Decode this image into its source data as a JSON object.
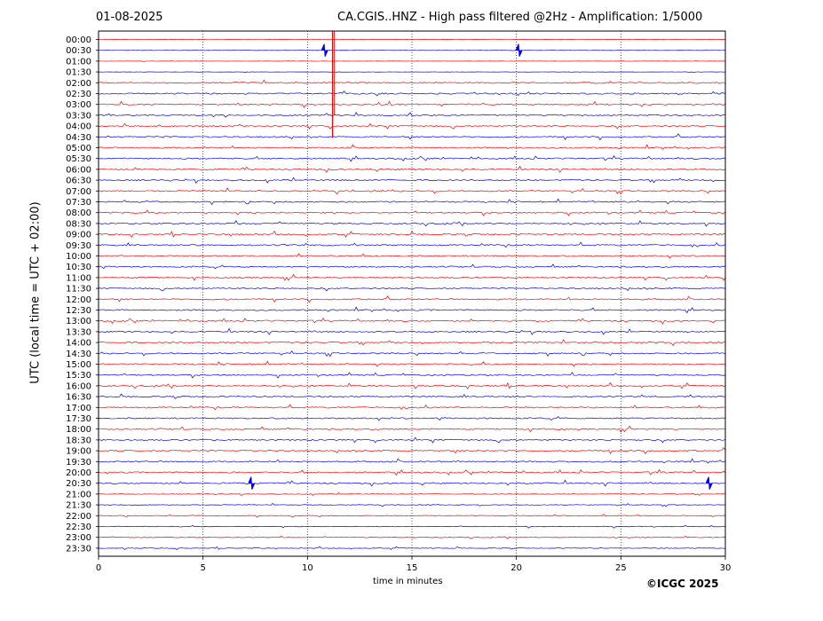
{
  "header": {
    "date": "01-08-2025",
    "title": "CA.CGIS..HNZ - High pass filtered @2Hz - Amplification: 1/5000"
  },
  "footer": {
    "copyright": "©ICGC 2025"
  },
  "colors": {
    "red_trace": "#ff0000",
    "blue_trace": "#0000ff",
    "grid": "#000080",
    "frame": "#000000"
  },
  "chart_data": {
    "type": "line",
    "subtype": "helicorder",
    "xlabel": "time in minutes",
    "ylabel": "UTC (local time = UTC + 02:00)",
    "xlim": [
      0,
      30
    ],
    "x_ticks": [
      "0",
      "5",
      "10",
      "15",
      "20",
      "25",
      "30"
    ],
    "grid": "vertical dotted lines at 5, 10, 15, 20, 25 minutes",
    "trace_colors_alternate": [
      "red",
      "blue"
    ],
    "rows": [
      "00:00",
      "00:30",
      "01:00",
      "01:30",
      "02:00",
      "02:30",
      "03:00",
      "03:30",
      "04:00",
      "04:30",
      "05:00",
      "05:30",
      "06:00",
      "06:30",
      "07:00",
      "07:30",
      "08:00",
      "08:30",
      "09:00",
      "09:30",
      "10:00",
      "10:30",
      "11:00",
      "11:30",
      "12:00",
      "12:30",
      "13:00",
      "13:30",
      "14:00",
      "14:30",
      "15:00",
      "15:30",
      "16:00",
      "16:30",
      "17:00",
      "17:30",
      "18:00",
      "18:30",
      "19:00",
      "19:30",
      "20:00",
      "20:30",
      "21:00",
      "21:30",
      "22:00",
      "22:30",
      "23:00",
      "23:30"
    ],
    "notable_events": [
      {
        "row": "00:00",
        "minute": 11.2,
        "note": "large spike clipped above frame"
      },
      {
        "row": "00:30",
        "minute": 10.8
      },
      {
        "row": "00:30",
        "minute": 20.1
      },
      {
        "row": "20:30",
        "minute": 7.3
      },
      {
        "row": "20:30",
        "minute": 29.2
      }
    ]
  }
}
